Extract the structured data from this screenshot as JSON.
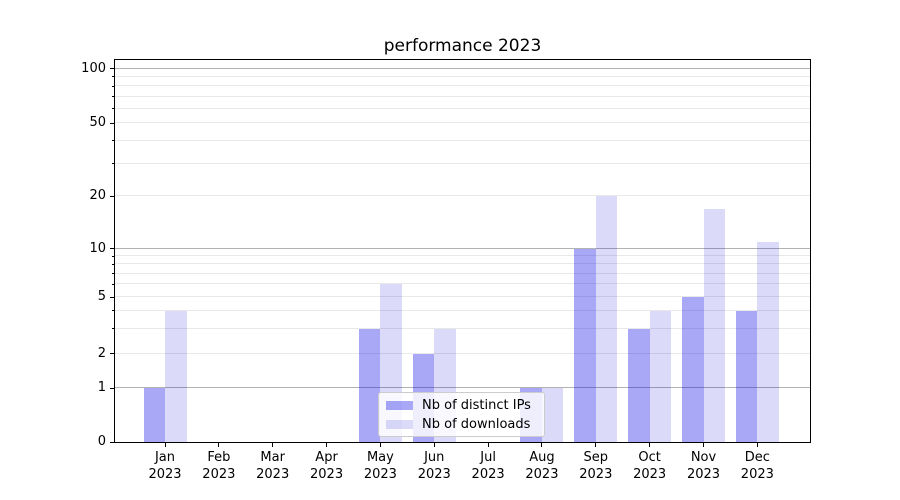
{
  "figure": {
    "title": "performance 2023"
  },
  "legend": {
    "items": [
      {
        "label": "Nb of distinct IPs",
        "color": "rgba(0,0,230,0.34)",
        "color_hex": "#a9a9f4"
      },
      {
        "label": "Nb of downloads",
        "color": "rgba(0,0,210,0.14)",
        "color_hex": "#dcdcf8"
      }
    ]
  },
  "chart_data": {
    "type": "bar",
    "title": "performance 2023",
    "categories": [
      "Jan 2023",
      "Feb 2023",
      "Mar 2023",
      "Apr 2023",
      "May 2023",
      "Jun 2023",
      "Jul 2023",
      "Aug 2023",
      "Sep 2023",
      "Oct 2023",
      "Nov 2023",
      "Dec 2023"
    ],
    "x_tick_months": [
      "Jan",
      "Feb",
      "Mar",
      "Apr",
      "May",
      "Jun",
      "Jul",
      "Aug",
      "Sep",
      "Oct",
      "Nov",
      "Dec"
    ],
    "x_tick_year": "2023",
    "series": [
      {
        "name": "Nb of distinct IPs",
        "color": "rgba(0,0,230,0.34)",
        "color_hex": "#a9a9f4",
        "values": [
          1,
          0,
          0,
          0,
          3,
          2,
          0,
          1,
          10,
          3,
          5,
          4
        ]
      },
      {
        "name": "Nb of downloads",
        "color": "rgba(0,0,210,0.14)",
        "color_hex": "#dcdcf8",
        "values": [
          4,
          0,
          0,
          0,
          6,
          3,
          0,
          1,
          20,
          4,
          17,
          11
        ]
      }
    ],
    "xlabel": "",
    "ylabel": "",
    "yscale": "symlog-like (linear 0-1, log above)",
    "ylim": [
      0,
      115
    ],
    "y_tick_values": [
      0,
      1,
      2,
      5,
      10,
      20,
      50,
      100
    ],
    "y_tick_labels": [
      "0",
      "1",
      "2",
      "5",
      "10",
      "20",
      "50",
      "100"
    ],
    "y_major_gridlines": [
      1,
      10,
      100
    ],
    "y_minor_gridlines": [
      2,
      3,
      4,
      5,
      6,
      7,
      8,
      9,
      20,
      30,
      40,
      50,
      60,
      70,
      80,
      90
    ],
    "grid": "horizontal only",
    "legend_position": "lower center (inside axes, overlapping Aug bars)"
  }
}
